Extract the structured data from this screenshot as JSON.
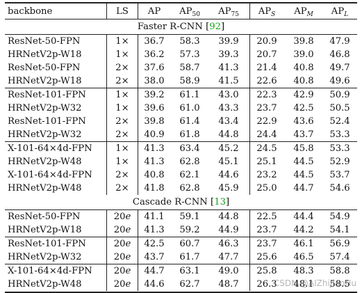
{
  "header": [
    "backbone",
    "LS",
    "AP",
    "AP50",
    "AP75",
    "APS",
    "APM",
    "APL"
  ],
  "sections": [
    {
      "title": "Faster R-CNN",
      "cite": "92",
      "groups": [
        [
          [
            "ResNet-50-FPN",
            "1×",
            "36.7",
            "58.3",
            "39.9",
            "20.9",
            "39.8",
            "47.9"
          ],
          [
            "HRNetV2p-W18",
            "1×",
            "36.2",
            "57.3",
            "39.3",
            "20.7",
            "39.0",
            "46.8"
          ],
          [
            "ResNet-50-FPN",
            "2×",
            "37.6",
            "58.7",
            "41.3",
            "21.4",
            "40.8",
            "49.7"
          ],
          [
            "HRNetV2p-W18",
            "2×",
            "38.0",
            "58.9",
            "41.5",
            "22.6",
            "40.8",
            "49.6"
          ]
        ],
        [
          [
            "ResNet-101-FPN",
            "1×",
            "39.2",
            "61.1",
            "43.0",
            "22.3",
            "42.9",
            "50.9"
          ],
          [
            "HRNetV2p-W32",
            "1×",
            "39.6",
            "61.0",
            "43.3",
            "23.7",
            "42.5",
            "50.5"
          ],
          [
            "ResNet-101-FPN",
            "2×",
            "39.8",
            "61.4",
            "43.4",
            "22.9",
            "43.6",
            "52.4"
          ],
          [
            "HRNetV2p-W32",
            "2×",
            "40.9",
            "61.8",
            "44.8",
            "24.4",
            "43.7",
            "53.3"
          ]
        ],
        [
          [
            "X-101-64×4d-FPN",
            "1×",
            "41.3",
            "63.4",
            "45.2",
            "24.5",
            "45.8",
            "53.3"
          ],
          [
            "HRNetV2p-W48",
            "1×",
            "41.3",
            "62.8",
            "45.1",
            "25.1",
            "44.5",
            "52.9"
          ],
          [
            "X-101-64×4d-FPN",
            "2×",
            "40.8",
            "62.1",
            "44.6",
            "23.2",
            "44.5",
            "53.7"
          ],
          [
            "HRNetV2p-W48",
            "2×",
            "41.8",
            "62.8",
            "45.9",
            "25.0",
            "44.7",
            "54.6"
          ]
        ]
      ]
    },
    {
      "title": "Cascade R-CNN",
      "cite": "13",
      "groups": [
        [
          [
            "ResNet-50-FPN",
            "20e",
            "41.1",
            "59.1",
            "44.8",
            "22.5",
            "44.4",
            "54.9"
          ],
          [
            "HRNetV2p-W18",
            "20e",
            "41.3",
            "59.2",
            "44.9",
            "23.7",
            "44.2",
            "54.1"
          ]
        ],
        [
          [
            "ResNet-101-FPN",
            "20e",
            "42.5",
            "60.7",
            "46.3",
            "23.7",
            "46.1",
            "56.9"
          ],
          [
            "HRNetV2p-W32",
            "20e",
            "43.7",
            "61.7",
            "47.7",
            "25.6",
            "46.5",
            "57.4"
          ]
        ],
        [
          [
            "X-101-64×4d-FPN",
            "20e",
            "44.7",
            "63.1",
            "49.0",
            "25.8",
            "48.3",
            "58.8"
          ],
          [
            "HRNetV2p-W48",
            "20e",
            "44.6",
            "62.7",
            "48.7",
            "26.3",
            "48.1",
            "58.5"
          ]
        ]
      ]
    }
  ],
  "watermark": "CSDN @AIZhiJiaoHu"
}
